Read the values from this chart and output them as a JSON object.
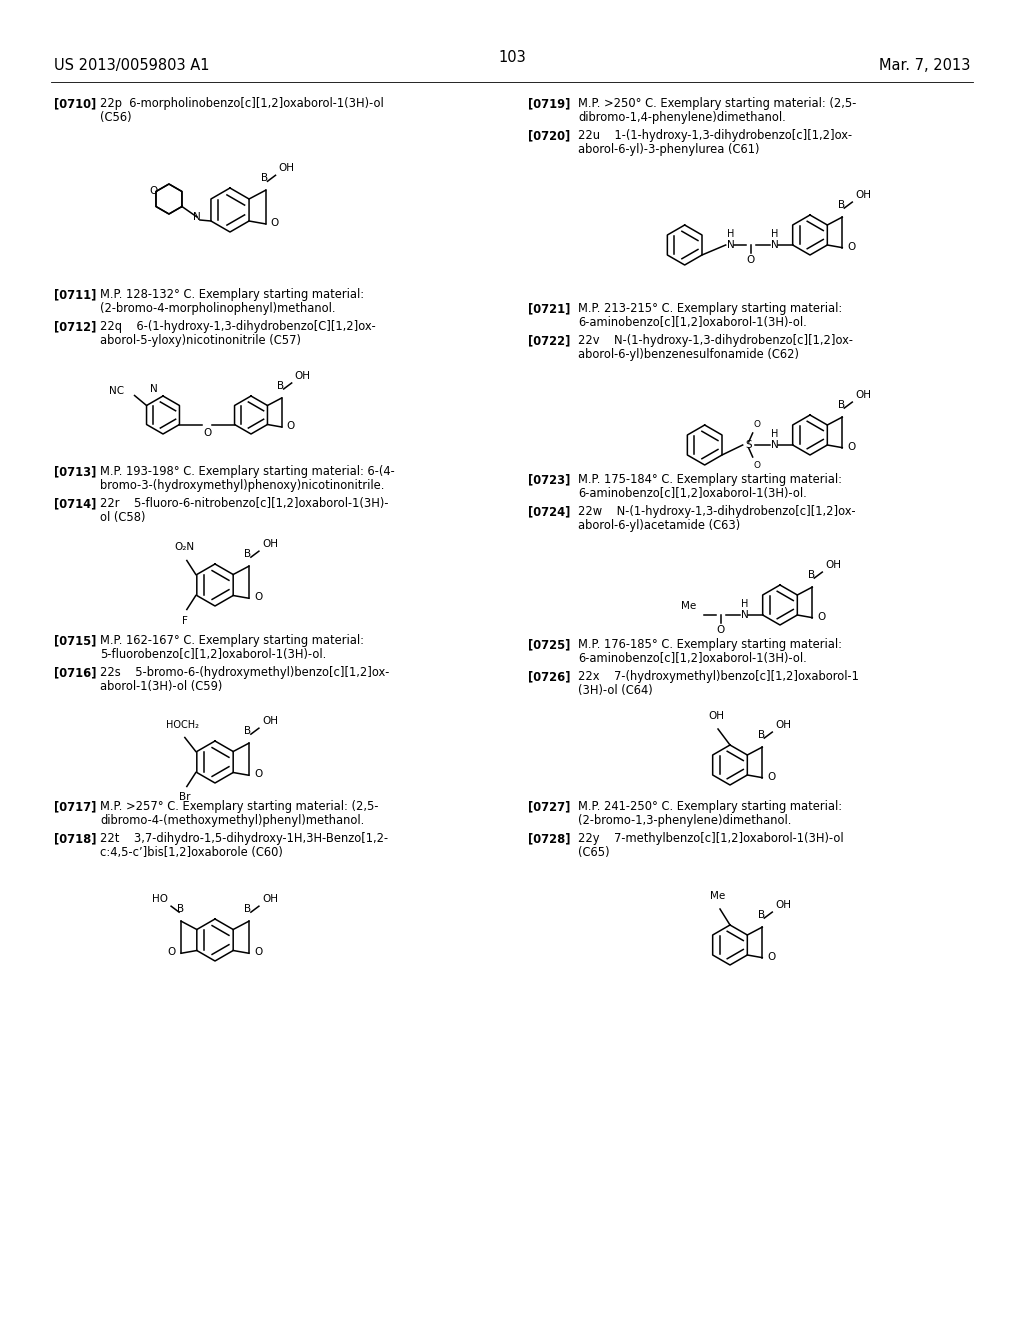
{
  "bg": "#ffffff",
  "header_left": "US 2013/0059803 A1",
  "header_right": "Mar. 7, 2013",
  "page_num": "103",
  "left_entries": [
    {
      "ids": [
        "[0710]"
      ],
      "texts": [
        "22p  6-morpholinobenzo[c][1,2]oxaborol-1(3H)-ol\n(C56)"
      ]
    },
    {
      "ids": [
        "[0711]",
        "[0712]"
      ],
      "texts": [
        "M.P. 128-132° C. Exemplary starting material:\n(2-bromo-4-morpholinophenyl)methanol.",
        "22q    6-(1-hydroxy-1,3-dihydrobenzo[C][1,2]ox-\naborol-5-yloxy)nicotinonitrile (C57)"
      ]
    },
    {
      "ids": [
        "[0713]",
        "[0714]"
      ],
      "texts": [
        "M.P. 193-198° C. Exemplary starting material: 6-(4-\nbromo-3-(hydroxymethyl)phenoxy)nicotinonitrile.",
        "22r    5-fluoro-6-nitrobenzo[c][1,2]oxaborol-1(3H)-\nol (C58)"
      ]
    },
    {
      "ids": [
        "[0715]",
        "[0716]"
      ],
      "texts": [
        "M.P. 162-167° C. Exemplary starting material:\n5-fluorobenzo[c][1,2]oxaborol-1(3H)-ol.",
        "22s    5-bromo-6-(hydroxymethyl)benzo[c][1,2]ox-\naborol-1(3H)-ol (C59)"
      ]
    },
    {
      "ids": [
        "[0717]",
        "[0718]"
      ],
      "texts": [
        "M.P. >257° C. Exemplary starting material: (2,5-\ndibromo-4-(methoxymethyl)phenyl)methanol.",
        "22t    3,7-dihydro-1,5-dihydroxy-1H,3H-Benzo[1,2-\nc:4,5-c’]bis[1,2]oxaborole (C60)"
      ]
    }
  ],
  "right_entries": [
    {
      "ids": [
        "[0719]",
        "[0720]"
      ],
      "texts": [
        "M.P. >250° C. Exemplary starting material: (2,5-\ndibromo-1,4-phenylene)dimethanol.",
        "22u    1-(1-hydroxy-1,3-dihydrobenzo[c][1,2]ox-\naborol-6-yl)-3-phenylurea (C61)"
      ]
    },
    {
      "ids": [
        "[0721]",
        "[0722]"
      ],
      "texts": [
        "M.P. 213-215° C. Exemplary starting material:\n6-aminobenzo[c][1,2]oxaborol-1(3H)-ol.",
        "22v    N-(1-hydroxy-1,3-dihydrobenzo[c][1,2]ox-\naborol-6-yl)benzenesulfonamide (C62)"
      ]
    },
    {
      "ids": [
        "[0723]",
        "[0724]"
      ],
      "texts": [
        "M.P. 175-184° C. Exemplary starting material:\n6-aminobenzo[c][1,2]oxaborol-1(3H)-ol.",
        "22w    N-(1-hydroxy-1,3-dihydrobenzo[c][1,2]ox-\naborol-6-yl)acetamide (C63)"
      ]
    },
    {
      "ids": [
        "[0725]",
        "[0726]"
      ],
      "texts": [
        "M.P. 176-185° C. Exemplary starting material:\n6-aminobenzo[c][1,2]oxaborol-1(3H)-ol.",
        "22x    7-(hydroxymethyl)benzo[c][1,2]oxaborol-1\n(3H)-ol (C64)"
      ]
    },
    {
      "ids": [
        "[0727]",
        "[0728]"
      ],
      "texts": [
        "M.P. 241-250° C. Exemplary starting material:\n(2-bromo-1,3-phenylene)dimethanol.",
        "22y    7-methylbenzo[c][1,2]oxaborol-1(3H)-ol\n(C65)"
      ]
    }
  ]
}
